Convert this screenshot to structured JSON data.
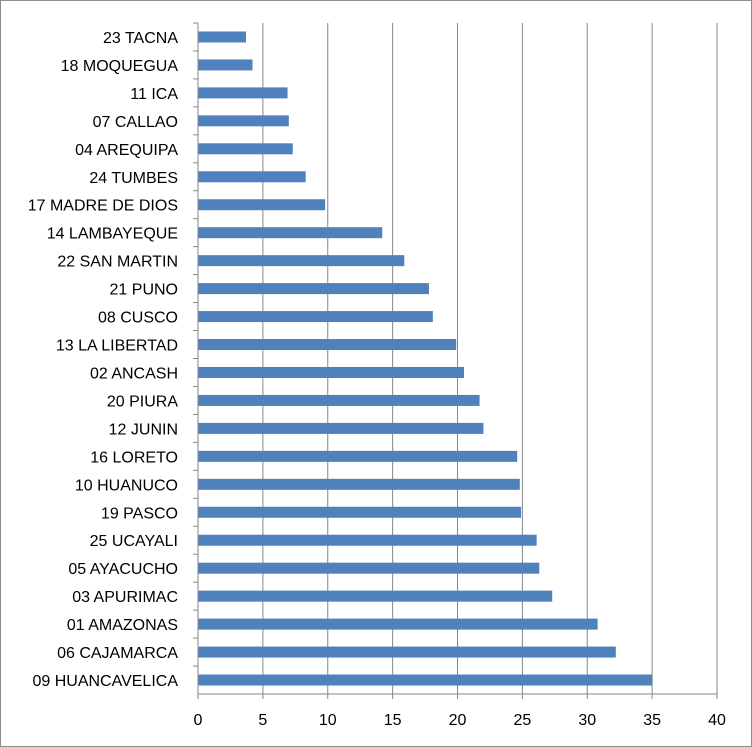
{
  "chart_data": {
    "type": "bar",
    "orientation": "horizontal",
    "title": "",
    "xlabel": "",
    "ylabel": "",
    "categories": [
      "23 TACNA",
      "18 MOQUEGUA",
      "11 ICA",
      "07 CALLAO",
      "04 AREQUIPA",
      "24 TUMBES",
      "17 MADRE DE DIOS",
      "14 LAMBAYEQUE",
      "22 SAN MARTIN",
      "21 PUNO",
      "08 CUSCO",
      "13 LA LIBERTAD",
      "02 ANCASH",
      "20 PIURA",
      "12 JUNIN",
      "16 LORETO",
      "10 HUANUCO",
      "19 PASCO",
      "25 UCAYALI",
      "05 AYACUCHO",
      "03 APURIMAC",
      "01 AMAZONAS",
      "06 CAJAMARCA",
      "09 HUANCAVELICA"
    ],
    "values": [
      3.7,
      4.2,
      6.9,
      7.0,
      7.3,
      8.3,
      9.8,
      14.2,
      15.9,
      17.8,
      18.1,
      19.9,
      20.5,
      21.7,
      22.0,
      24.6,
      24.8,
      24.9,
      26.1,
      26.3,
      27.3,
      30.8,
      32.2,
      35.0
    ],
    "xlim": [
      0,
      40
    ],
    "xticks": [
      "0",
      "5",
      "10",
      "15",
      "20",
      "25",
      "30",
      "35",
      "40"
    ],
    "grid": true,
    "legend": "none",
    "bar_color": "#4f81bd",
    "grid_color": "#868686"
  }
}
